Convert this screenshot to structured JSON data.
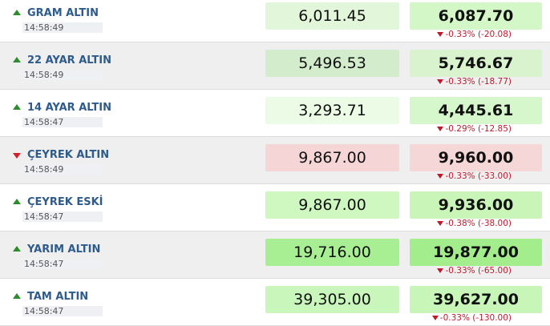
{
  "rows": [
    {
      "name": "GRAM ALTIN",
      "time": "14:58:49",
      "buy": "6,011.45",
      "sell": "6,087.70",
      "change": "-0.33% (-20.08)",
      "trend": "up",
      "buy_color": "#e2f7d9",
      "sell_color": "#d4f7c8"
    },
    {
      "name": "22 AYAR ALTIN",
      "time": "14:58:49",
      "buy": "5,496.53",
      "sell": "5,746.67",
      "change": "-0.33% (-18.77)",
      "trend": "up",
      "buy_color": "#d3eccb",
      "sell_color": "#daf3cf"
    },
    {
      "name": "14 AYAR ALTIN",
      "time": "14:58:47",
      "buy": "3,293.71",
      "sell": "4,445.61",
      "change": "-0.29% (-12.85)",
      "trend": "up",
      "buy_color": "#ecfbe6",
      "sell_color": "#d6f6cb"
    },
    {
      "name": "ÇEYREK ALTIN",
      "time": "14:58:49",
      "buy": "9,867.00",
      "sell": "9,960.00",
      "change": "-0.33% (-33.00)",
      "trend": "down",
      "buy_color": "#f5d5d5",
      "sell_color": "#f5d7d7"
    },
    {
      "name": "ÇEYREK ESKİ",
      "time": "14:58:47",
      "buy": "9,867.00",
      "sell": "9,936.00",
      "change": "-0.38% (-38.00)",
      "trend": "up",
      "buy_color": "#cff7c0",
      "sell_color": "#c9f5b8"
    },
    {
      "name": "YARIM ALTIN",
      "time": "14:58:47",
      "buy": "19,716.00",
      "sell": "19,877.00",
      "change": "-0.33% (-65.00)",
      "trend": "up",
      "buy_color": "#a8ef94",
      "sell_color": "#a3ed8c"
    },
    {
      "name": "TAM ALTIN",
      "time": "14:58:47",
      "buy": "39,305.00",
      "sell": "39,627.00",
      "change": "-0.33% (-130.00)",
      "trend": "up",
      "buy_color": "#c9f7bb",
      "sell_color": "#c7f6b8"
    }
  ]
}
